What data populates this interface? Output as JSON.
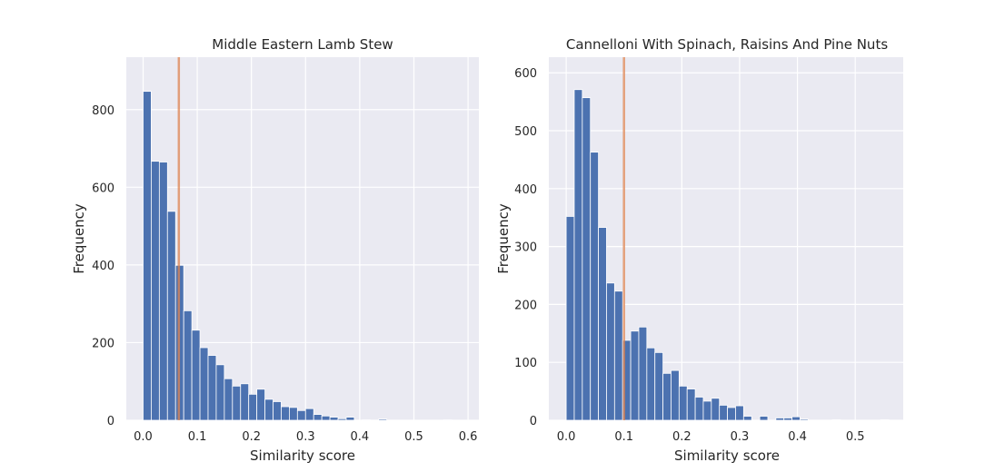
{
  "figure": {
    "background": "#ffffff",
    "plot_background": "#eaeaf2",
    "grid_color": "#ffffff",
    "bar_color": "#4c72b0",
    "vline_color": "#dd8452"
  },
  "chart_data": [
    {
      "type": "bar",
      "title": "Middle Eastern Lamb Stew",
      "xlabel": "Similarity score",
      "ylabel": "Frequency",
      "xlim": [
        -0.031,
        0.62
      ],
      "ylim": [
        0,
        935
      ],
      "xticks": [
        0.0,
        0.1,
        0.2,
        0.3,
        0.4,
        0.5,
        0.6
      ],
      "xtick_labels": [
        "0.0",
        "0.1",
        "0.2",
        "0.3",
        "0.4",
        "0.5",
        "0.6"
      ],
      "yticks": [
        0,
        200,
        400,
        600,
        800
      ],
      "ytick_labels": [
        "0",
        "200",
        "400",
        "600",
        "800"
      ],
      "grid": true,
      "bin_start": 0.0,
      "bin_width": 0.015,
      "values": [
        847,
        667,
        665,
        538,
        399,
        282,
        232,
        187,
        167,
        143,
        107,
        88,
        94,
        67,
        80,
        54,
        48,
        35,
        33,
        25,
        30,
        15,
        11,
        8,
        4,
        8,
        0,
        1,
        0,
        3,
        0,
        0,
        0,
        0,
        0,
        0,
        0,
        1,
        0,
        0
      ],
      "vline": 0.066
    },
    {
      "type": "bar",
      "title": "Cannelloni With Spinach, Raisins And Pine Nuts",
      "xlabel": "Similarity score",
      "ylabel": "Frequency",
      "xlim": [
        -0.03,
        0.583
      ],
      "ylim": [
        0,
        627
      ],
      "xticks": [
        0.0,
        0.1,
        0.2,
        0.3,
        0.4,
        0.5
      ],
      "xtick_labels": [
        "0.0",
        "0.1",
        "0.2",
        "0.3",
        "0.4",
        "0.5"
      ],
      "yticks": [
        0,
        100,
        200,
        300,
        400,
        500,
        600
      ],
      "ytick_labels": [
        "0",
        "100",
        "200",
        "300",
        "400",
        "500",
        "600"
      ],
      "grid": true,
      "bin_start": 0.0,
      "bin_width": 0.01395,
      "values": [
        352,
        571,
        557,
        463,
        333,
        237,
        223,
        138,
        154,
        161,
        125,
        117,
        81,
        86,
        59,
        54,
        40,
        33,
        38,
        26,
        22,
        25,
        7,
        0,
        7,
        0,
        4,
        4,
        6,
        2,
        0,
        0,
        0,
        1,
        0,
        0,
        0,
        0,
        0,
        1
      ],
      "vline": 0.1
    }
  ]
}
